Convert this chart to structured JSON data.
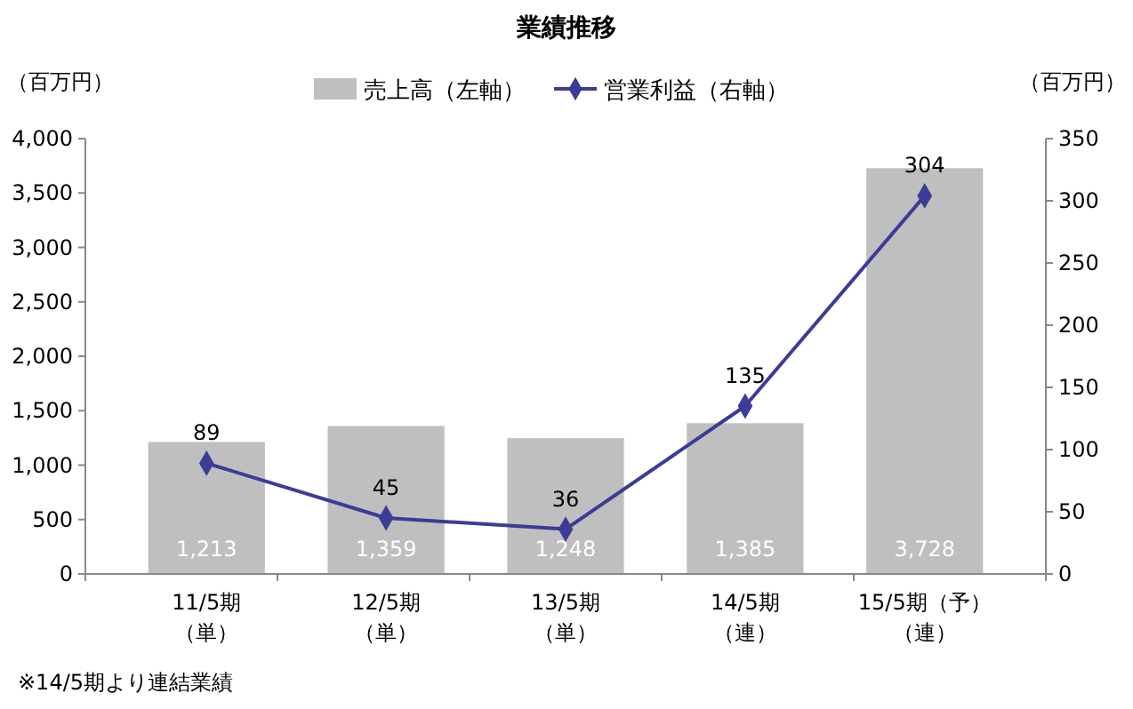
{
  "chart_data": {
    "type": "bar",
    "title": "業績推移",
    "ylabel": "（百万円）",
    "y2label": "（百万円）",
    "categories": [
      "11/5期（単）",
      "12/5期（単）",
      "13/5期（単）",
      "14/5期（連）",
      "15/5期（予）（連）"
    ],
    "series": [
      {
        "name": "売上高（左軸）",
        "color": "#bfbfbf",
        "values": [
          1213,
          1359,
          1248,
          1385,
          3728
        ],
        "value_labels": [
          "1,213",
          "1,359",
          "1,248",
          "1,385",
          "3,728"
        ]
      },
      {
        "name": "営業利益（右軸）",
        "type": "line",
        "axis": "y2",
        "color": "#3b3b98",
        "marker": "diamond",
        "values": [
          89,
          45,
          36,
          135,
          304
        ],
        "value_labels": [
          "89",
          "45",
          "36",
          "135",
          "304"
        ]
      }
    ],
    "ylim": [
      0,
      4000
    ],
    "yticks": [
      0,
      {
        "value": 500,
        "label": "500"
      },
      {
        "value": 1000,
        "label": "1,000"
      },
      {
        "value": 1500,
        "label": "1,500"
      },
      {
        "value": 2000,
        "label": "2,000"
      },
      {
        "value": 2500,
        "label": "2,500"
      },
      {
        "value": 3000,
        "label": "3,000"
      },
      {
        "value": 3500,
        "label": "3,500"
      },
      {
        "value": 4000,
        "label": "4,000"
      }
    ],
    "y2lim": [
      0,
      350
    ],
    "y2ticks": [
      0,
      50,
      100,
      150,
      200,
      250,
      300,
      350
    ],
    "grid": false,
    "legend": "top",
    "annotations": [
      "※14/5期より連結業績"
    ]
  }
}
